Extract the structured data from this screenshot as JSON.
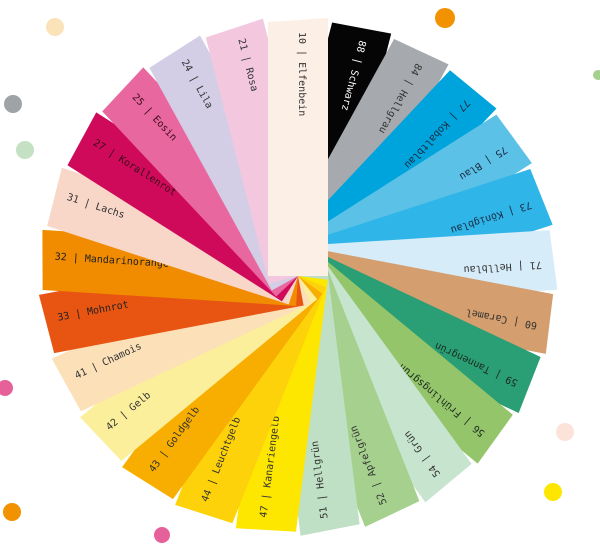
{
  "swatches": [
    {
      "label": "10 | Elfenbein",
      "color": "#fcefe6",
      "text_color": "#333333"
    },
    {
      "label": "88 | Schwarz",
      "color": "#050505",
      "text_color": "#ffffff"
    },
    {
      "label": "84 | Hellgrau",
      "color": "#a6a9ad",
      "text_color": "#333333"
    },
    {
      "label": "77 | Kobaltblau",
      "color": "#00a4dd",
      "text_color": "#1a2a40"
    },
    {
      "label": "75 | Blau",
      "color": "#5cc1e6",
      "text_color": "#1a2a40"
    },
    {
      "label": "73 | Königblau",
      "color": "#2fb5e8",
      "text_color": "#1a2a40"
    },
    {
      "label": "71 | Hellblau",
      "color": "#d7ecf9",
      "text_color": "#333333"
    },
    {
      "label": "60 | Caramel",
      "color": "#d49e6e",
      "text_color": "#333333"
    },
    {
      "label": "59 | Tannengrün",
      "color": "#2a9e74",
      "text_color": "#1a2a20"
    },
    {
      "label": "56 | Frühlingsgrün",
      "color": "#94c56b",
      "text_color": "#1a2a20"
    },
    {
      "label": "54 | Grün",
      "color": "#c7e4cf",
      "text_color": "#333333"
    },
    {
      "label": "52 | Apfelgrün",
      "color": "#a5d08e",
      "text_color": "#333333"
    },
    {
      "label": "51 | Hellgrün",
      "color": "#bfe0c4",
      "text_color": "#333333"
    },
    {
      "label": "47 | Kanariengelb",
      "color": "#fde600",
      "text_color": "#333333"
    },
    {
      "label": "44 | Leuchtgelb",
      "color": "#fdd20a",
      "text_color": "#333333"
    },
    {
      "label": "43 | Goldgelb",
      "color": "#f8ae00",
      "text_color": "#333333"
    },
    {
      "label": "42 | Gelb",
      "color": "#fcef9c",
      "text_color": "#333333"
    },
    {
      "label": "41 | Chamois",
      "color": "#fbe0b8",
      "text_color": "#333333"
    },
    {
      "label": "33 | Mohnrot",
      "color": "#e85512",
      "text_color": "#222222"
    },
    {
      "label": "32 | Mandarinorange",
      "color": "#f18b00",
      "text_color": "#222222"
    },
    {
      "label": "31 | Lachs",
      "color": "#f8d6c8",
      "text_color": "#333333"
    },
    {
      "label": "27 | Korallenrot",
      "color": "#cf0a5a",
      "text_color": "#3a0a1a"
    },
    {
      "label": "25 | Eosin",
      "color": "#e9679f",
      "text_color": "#3a0a1a"
    },
    {
      "label": "24 | Lila",
      "color": "#d3cde6",
      "text_color": "#333333"
    },
    {
      "label": "21 | Rosa",
      "color": "#f3c8df",
      "text_color": "#333333"
    }
  ],
  "dots": [
    {
      "color": "#f39200"
    },
    {
      "color": "#fbe3b9"
    },
    {
      "color": "#9ea3a6"
    },
    {
      "color": "#c4e1c4"
    },
    {
      "color": "#e6609a"
    },
    {
      "color": "#f39200"
    },
    {
      "color": "#e6609a"
    },
    {
      "color": "#fde600"
    },
    {
      "color": "#fbe3da"
    },
    {
      "color": "#a5d08e"
    }
  ]
}
